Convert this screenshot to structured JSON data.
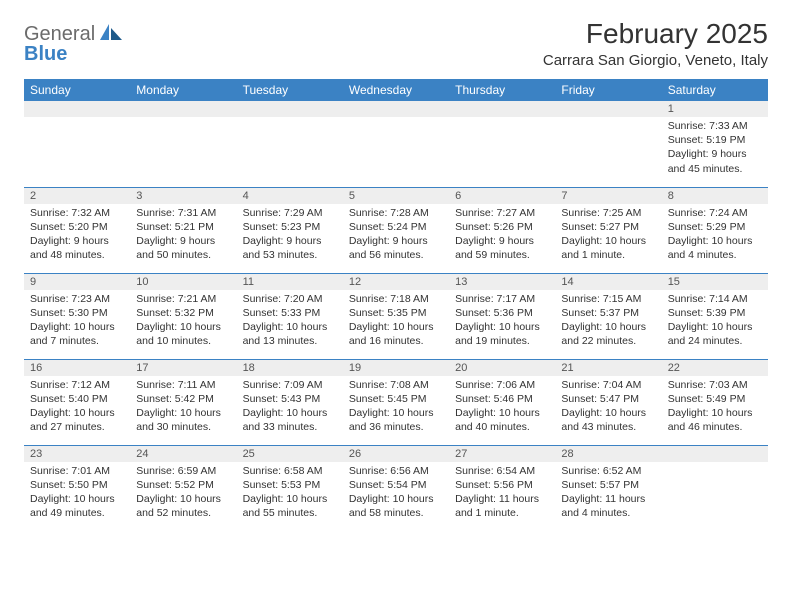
{
  "brand": {
    "line1": "General",
    "line2": "Blue"
  },
  "title": "February 2025",
  "location": "Carrara San Giorgio, Veneto, Italy",
  "colors": {
    "header_bg": "#3b82c4",
    "header_text": "#ffffff",
    "rule": "#3b82c4",
    "daynum_bg": "#eeeeee",
    "text": "#333333",
    "logo_gray": "#6b6b6b",
    "logo_blue": "#3b82c4",
    "page_bg": "#ffffff"
  },
  "day_headers": [
    "Sunday",
    "Monday",
    "Tuesday",
    "Wednesday",
    "Thursday",
    "Friday",
    "Saturday"
  ],
  "weeks": [
    [
      null,
      null,
      null,
      null,
      null,
      null,
      {
        "n": "1",
        "sr": "Sunrise: 7:33 AM",
        "ss": "Sunset: 5:19 PM",
        "dl": "Daylight: 9 hours and 45 minutes."
      }
    ],
    [
      {
        "n": "2",
        "sr": "Sunrise: 7:32 AM",
        "ss": "Sunset: 5:20 PM",
        "dl": "Daylight: 9 hours and 48 minutes."
      },
      {
        "n": "3",
        "sr": "Sunrise: 7:31 AM",
        "ss": "Sunset: 5:21 PM",
        "dl": "Daylight: 9 hours and 50 minutes."
      },
      {
        "n": "4",
        "sr": "Sunrise: 7:29 AM",
        "ss": "Sunset: 5:23 PM",
        "dl": "Daylight: 9 hours and 53 minutes."
      },
      {
        "n": "5",
        "sr": "Sunrise: 7:28 AM",
        "ss": "Sunset: 5:24 PM",
        "dl": "Daylight: 9 hours and 56 minutes."
      },
      {
        "n": "6",
        "sr": "Sunrise: 7:27 AM",
        "ss": "Sunset: 5:26 PM",
        "dl": "Daylight: 9 hours and 59 minutes."
      },
      {
        "n": "7",
        "sr": "Sunrise: 7:25 AM",
        "ss": "Sunset: 5:27 PM",
        "dl": "Daylight: 10 hours and 1 minute."
      },
      {
        "n": "8",
        "sr": "Sunrise: 7:24 AM",
        "ss": "Sunset: 5:29 PM",
        "dl": "Daylight: 10 hours and 4 minutes."
      }
    ],
    [
      {
        "n": "9",
        "sr": "Sunrise: 7:23 AM",
        "ss": "Sunset: 5:30 PM",
        "dl": "Daylight: 10 hours and 7 minutes."
      },
      {
        "n": "10",
        "sr": "Sunrise: 7:21 AM",
        "ss": "Sunset: 5:32 PM",
        "dl": "Daylight: 10 hours and 10 minutes."
      },
      {
        "n": "11",
        "sr": "Sunrise: 7:20 AM",
        "ss": "Sunset: 5:33 PM",
        "dl": "Daylight: 10 hours and 13 minutes."
      },
      {
        "n": "12",
        "sr": "Sunrise: 7:18 AM",
        "ss": "Sunset: 5:35 PM",
        "dl": "Daylight: 10 hours and 16 minutes."
      },
      {
        "n": "13",
        "sr": "Sunrise: 7:17 AM",
        "ss": "Sunset: 5:36 PM",
        "dl": "Daylight: 10 hours and 19 minutes."
      },
      {
        "n": "14",
        "sr": "Sunrise: 7:15 AM",
        "ss": "Sunset: 5:37 PM",
        "dl": "Daylight: 10 hours and 22 minutes."
      },
      {
        "n": "15",
        "sr": "Sunrise: 7:14 AM",
        "ss": "Sunset: 5:39 PM",
        "dl": "Daylight: 10 hours and 24 minutes."
      }
    ],
    [
      {
        "n": "16",
        "sr": "Sunrise: 7:12 AM",
        "ss": "Sunset: 5:40 PM",
        "dl": "Daylight: 10 hours and 27 minutes."
      },
      {
        "n": "17",
        "sr": "Sunrise: 7:11 AM",
        "ss": "Sunset: 5:42 PM",
        "dl": "Daylight: 10 hours and 30 minutes."
      },
      {
        "n": "18",
        "sr": "Sunrise: 7:09 AM",
        "ss": "Sunset: 5:43 PM",
        "dl": "Daylight: 10 hours and 33 minutes."
      },
      {
        "n": "19",
        "sr": "Sunrise: 7:08 AM",
        "ss": "Sunset: 5:45 PM",
        "dl": "Daylight: 10 hours and 36 minutes."
      },
      {
        "n": "20",
        "sr": "Sunrise: 7:06 AM",
        "ss": "Sunset: 5:46 PM",
        "dl": "Daylight: 10 hours and 40 minutes."
      },
      {
        "n": "21",
        "sr": "Sunrise: 7:04 AM",
        "ss": "Sunset: 5:47 PM",
        "dl": "Daylight: 10 hours and 43 minutes."
      },
      {
        "n": "22",
        "sr": "Sunrise: 7:03 AM",
        "ss": "Sunset: 5:49 PM",
        "dl": "Daylight: 10 hours and 46 minutes."
      }
    ],
    [
      {
        "n": "23",
        "sr": "Sunrise: 7:01 AM",
        "ss": "Sunset: 5:50 PM",
        "dl": "Daylight: 10 hours and 49 minutes."
      },
      {
        "n": "24",
        "sr": "Sunrise: 6:59 AM",
        "ss": "Sunset: 5:52 PM",
        "dl": "Daylight: 10 hours and 52 minutes."
      },
      {
        "n": "25",
        "sr": "Sunrise: 6:58 AM",
        "ss": "Sunset: 5:53 PM",
        "dl": "Daylight: 10 hours and 55 minutes."
      },
      {
        "n": "26",
        "sr": "Sunrise: 6:56 AM",
        "ss": "Sunset: 5:54 PM",
        "dl": "Daylight: 10 hours and 58 minutes."
      },
      {
        "n": "27",
        "sr": "Sunrise: 6:54 AM",
        "ss": "Sunset: 5:56 PM",
        "dl": "Daylight: 11 hours and 1 minute."
      },
      {
        "n": "28",
        "sr": "Sunrise: 6:52 AM",
        "ss": "Sunset: 5:57 PM",
        "dl": "Daylight: 11 hours and 4 minutes."
      },
      null
    ]
  ]
}
